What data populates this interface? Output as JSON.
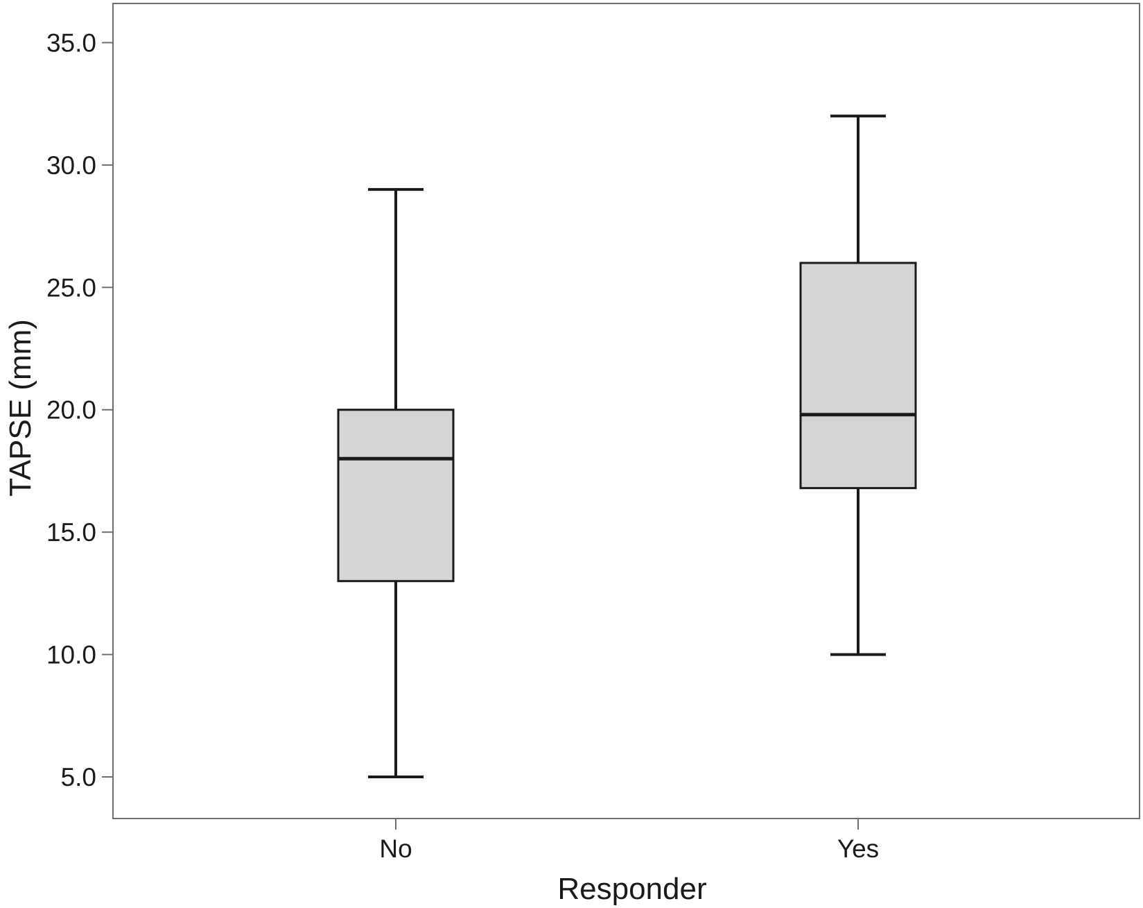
{
  "chart_data": {
    "type": "box",
    "title": "",
    "xlabel": "Responder",
    "ylabel": "TAPSE (mm)",
    "ylim": [
      3.3,
      36.6
    ],
    "yticks": [
      5.0,
      10.0,
      15.0,
      20.0,
      25.0,
      30.0,
      35.0
    ],
    "ytick_labels": [
      "5.0",
      "10.0",
      "15.0",
      "20.0",
      "25.0",
      "30.0",
      "35.0"
    ],
    "categories": [
      "No",
      "Yes"
    ],
    "boxes": [
      {
        "category": "No",
        "whisker_low": 5.0,
        "q1": 13.0,
        "median": 18.0,
        "q3": 20.0,
        "whisker_high": 29.0
      },
      {
        "category": "Yes",
        "whisker_low": 10.0,
        "q1": 16.8,
        "median": 19.8,
        "q3": 26.0,
        "whisker_high": 32.0
      }
    ],
    "box_fill": "#d4d5d7",
    "stroke_color": "#1a1a1a",
    "grid": false
  }
}
